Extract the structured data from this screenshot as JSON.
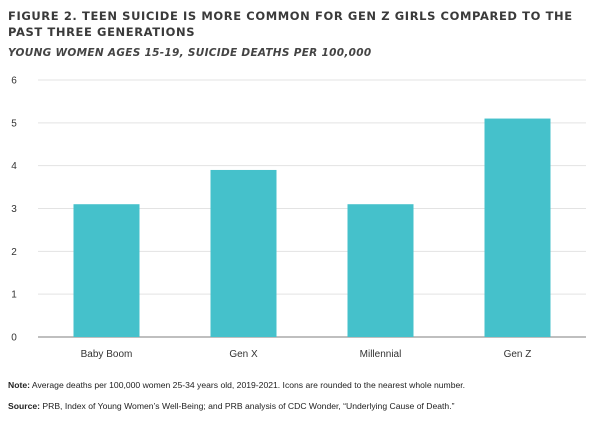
{
  "figure": {
    "title": "FIGURE 2. TEEN SUICIDE IS MORE COMMON FOR GEN Z GIRLS COMPARED TO THE PAST THREE GENERATIONS",
    "subtitle": "YOUNG WOMEN AGES 15-19, SUICIDE DEATHS PER 100,000"
  },
  "notes": {
    "note_label": "Note:",
    "note_text": "Average deaths per 100,000 women 25-34 years old, 2019-2021. Icons are rounded to the nearest whole number.",
    "source_label": "Source:",
    "source_text": "PRB, Index of Young Women’s Well-Being; and PRB analysis of CDC Wonder, “Underlying Cause of Death.”"
  },
  "colors": {
    "bar": "#45C1CB",
    "grid": "#e3e3e3",
    "axis": "#999999",
    "text": "#333333"
  },
  "chart_data": {
    "type": "bar",
    "title": "FIGURE 2. TEEN SUICIDE IS MORE COMMON FOR GEN Z GIRLS COMPARED TO THE PAST THREE GENERATIONS",
    "subtitle": "YOUNG WOMEN AGES 15-19, SUICIDE DEATHS PER 100,000",
    "categories": [
      "Baby Boom",
      "Gen X",
      "Millennial",
      "Gen Z"
    ],
    "values": [
      3.1,
      3.9,
      3.1,
      5.1
    ],
    "xlabel": "",
    "ylabel": "",
    "ylim": [
      0,
      6
    ],
    "yticks": [
      0,
      1,
      2,
      3,
      4,
      5,
      6
    ],
    "grid": true,
    "legend": "none"
  }
}
